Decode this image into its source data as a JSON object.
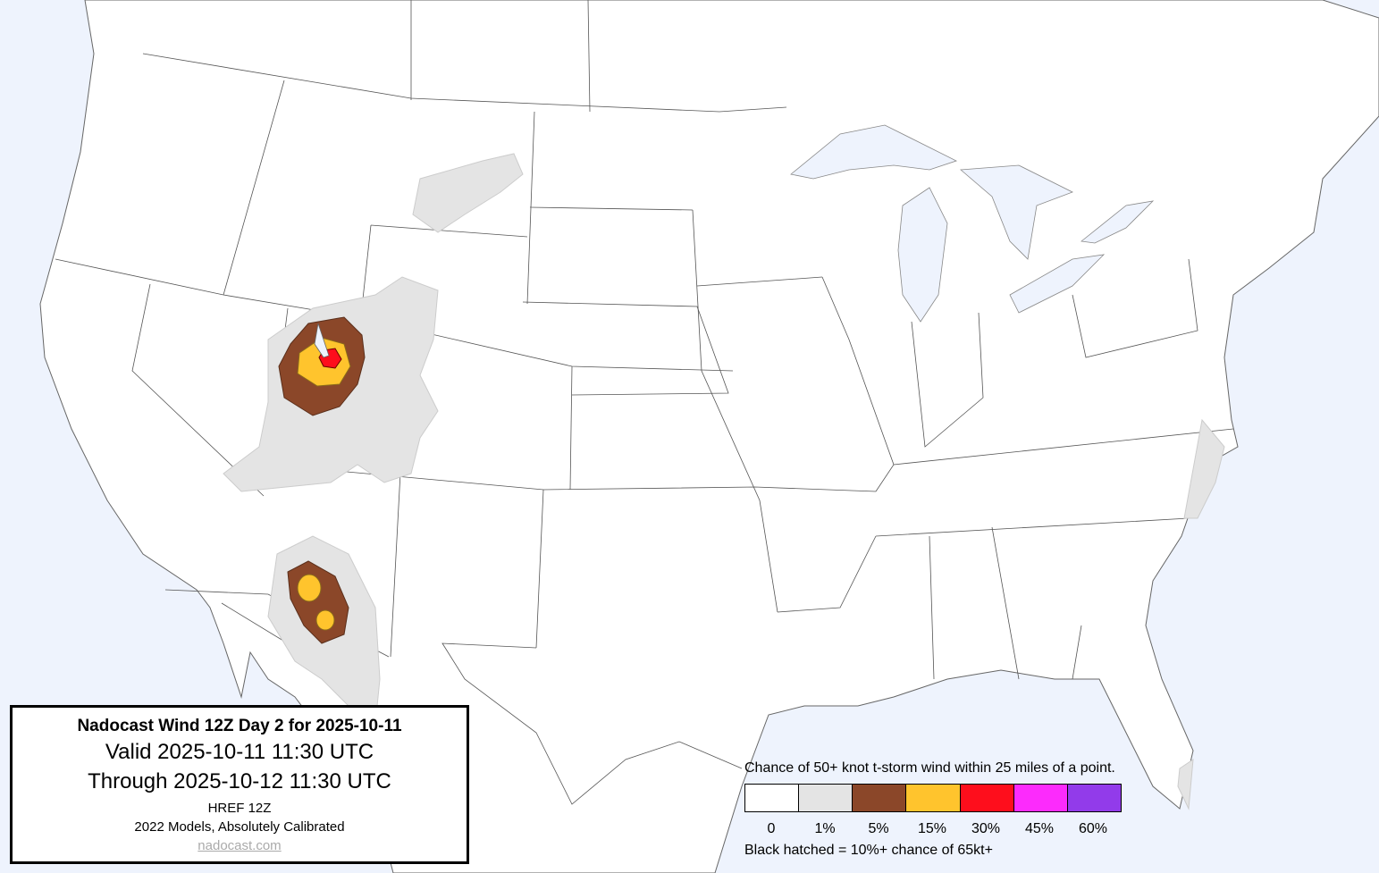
{
  "infobox": {
    "title": "Nadocast Wind 12Z Day 2 for 2025-10-11",
    "valid": "Valid 2025-10-11 11:30 UTC",
    "through": "Through 2025-10-12 11:30 UTC",
    "model": "HREF 12Z",
    "calibration": "2022 Models, Absolutely Calibrated",
    "link": "nadocast.com"
  },
  "legend": {
    "title": "Chance of 50+ knot t-storm wind within 25 miles of a point.",
    "bins": [
      {
        "label": "0",
        "color": "#ffffff"
      },
      {
        "label": "1%",
        "color": "#e4e4e4"
      },
      {
        "label": "5%",
        "color": "#8b4729"
      },
      {
        "label": "15%",
        "color": "#ffc42d"
      },
      {
        "label": "30%",
        "color": "#fe0e1c"
      },
      {
        "label": "45%",
        "color": "#fc2bfc"
      },
      {
        "label": "60%",
        "color": "#923bea"
      }
    ],
    "note": "Black hatched = 10%+ chance of 65kt+"
  },
  "colors": {
    "water": "#eef3fd",
    "land": "#ffffff",
    "border": "#555555"
  }
}
